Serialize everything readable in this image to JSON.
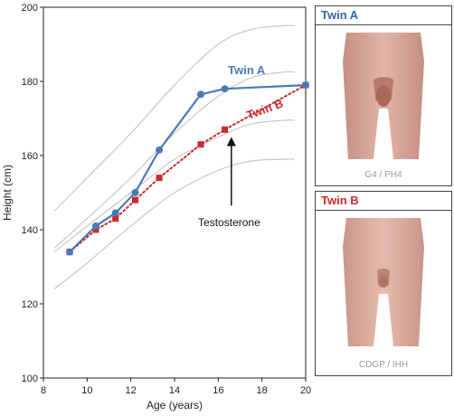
{
  "chart_data": {
    "type": "line",
    "title": "",
    "xlabel": "Age (years)",
    "ylabel": "Height (cm)",
    "xlim": [
      8,
      20
    ],
    "ylim": [
      100,
      200
    ],
    "xticks": [
      8,
      10,
      12,
      14,
      16,
      18,
      20
    ],
    "yticks": [
      100,
      120,
      140,
      160,
      180,
      200
    ],
    "grid": false,
    "series": [
      {
        "name": "Twin A",
        "color": "#4a7ab5",
        "marker": "circle",
        "line_style": "solid",
        "points": [
          {
            "x": 9.2,
            "y": 134
          },
          {
            "x": 10.4,
            "y": 141
          },
          {
            "x": 11.3,
            "y": 144.5
          },
          {
            "x": 12.2,
            "y": 150
          },
          {
            "x": 13.3,
            "y": 161.5
          },
          {
            "x": 15.2,
            "y": 176.5
          },
          {
            "x": 16.3,
            "y": 178
          },
          {
            "x": 20,
            "y": 179
          }
        ]
      },
      {
        "name": "Twin B",
        "color": "#cc2a2a",
        "marker": "square",
        "line_style": "dotted",
        "points": [
          {
            "x": 9.2,
            "y": 134
          },
          {
            "x": 10.4,
            "y": 140
          },
          {
            "x": 11.3,
            "y": 143
          },
          {
            "x": 12.2,
            "y": 148
          },
          {
            "x": 13.3,
            "y": 154
          },
          {
            "x": 15.2,
            "y": 163
          },
          {
            "x": 16.3,
            "y": 167
          },
          {
            "x": 20,
            "y": 179
          }
        ]
      }
    ],
    "reference_curves": [
      {
        "color": "#c8c8c8",
        "points": [
          {
            "x": 8.5,
            "y": 145
          },
          {
            "x": 10,
            "y": 154
          },
          {
            "x": 12,
            "y": 166
          },
          {
            "x": 14,
            "y": 179
          },
          {
            "x": 16,
            "y": 190
          },
          {
            "x": 17.5,
            "y": 194
          },
          {
            "x": 19,
            "y": 195
          },
          {
            "x": 19.5,
            "y": 195
          }
        ]
      },
      {
        "color": "#c8c8c8",
        "points": [
          {
            "x": 8.5,
            "y": 135
          },
          {
            "x": 10,
            "y": 143
          },
          {
            "x": 12,
            "y": 154
          },
          {
            "x": 14,
            "y": 166
          },
          {
            "x": 16,
            "y": 176
          },
          {
            "x": 17.5,
            "y": 181
          },
          {
            "x": 19,
            "y": 182.5
          },
          {
            "x": 19.5,
            "y": 182.5
          }
        ]
      },
      {
        "color": "#c8c8c8",
        "points": [
          {
            "x": 8.5,
            "y": 134
          },
          {
            "x": 10,
            "y": 141
          },
          {
            "x": 12,
            "y": 150
          },
          {
            "x": 14,
            "y": 159
          },
          {
            "x": 16,
            "y": 165
          },
          {
            "x": 17.5,
            "y": 168.5
          },
          {
            "x": 19,
            "y": 169.5
          },
          {
            "x": 19.5,
            "y": 169.5
          }
        ]
      },
      {
        "color": "#c8c8c8",
        "points": [
          {
            "x": 8.5,
            "y": 124
          },
          {
            "x": 10,
            "y": 131
          },
          {
            "x": 12,
            "y": 141
          },
          {
            "x": 14,
            "y": 150
          },
          {
            "x": 16,
            "y": 156
          },
          {
            "x": 17.5,
            "y": 158.5
          },
          {
            "x": 19,
            "y": 159
          },
          {
            "x": 19.5,
            "y": 159
          }
        ]
      }
    ],
    "series_labels": [
      {
        "text": "Twin A",
        "color": "#4a7ab5",
        "x": 17.3,
        "y": 182
      },
      {
        "text": "Twin B",
        "color": "#cc2a2a",
        "x": 18.2,
        "y": 171.5,
        "rotate": -20
      }
    ],
    "annotation": {
      "text": "Testosterone",
      "arrow_from": {
        "x": 16.6,
        "y": 146.5
      },
      "arrow_to": {
        "x": 16.6,
        "y": 165
      },
      "text_at": {
        "x": 16.5,
        "y": 141
      }
    }
  },
  "panels": [
    {
      "title": "Twin A",
      "title_color": "#2e6aa8",
      "caption": "G4 / PH4",
      "image": "twin-a-genital-stage-illustration"
    },
    {
      "title": "Twin B",
      "title_color": "#cc2a2a",
      "caption": "CDGP / IHH",
      "image": "twin-b-genital-stage-illustration"
    }
  ]
}
